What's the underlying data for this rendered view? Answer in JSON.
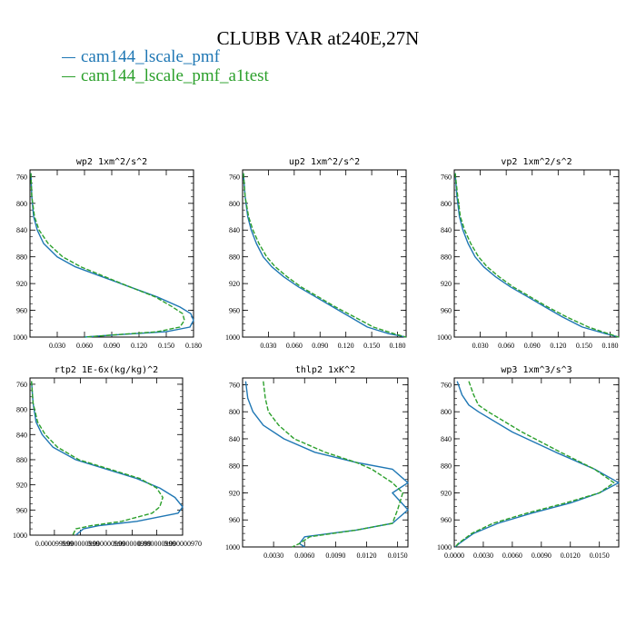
{
  "title": "CLUBB VAR at240E,27N",
  "legend": [
    {
      "label": "cam144_lscale_pmf",
      "color": "#1f77b4",
      "style": "solid"
    },
    {
      "label": "cam144_lscale_pmf_a1test",
      "color": "#2ca02c",
      "style": "dashed"
    }
  ],
  "chart_data": [
    {
      "type": "line",
      "title": "wp2   1xm^2/s^2",
      "xlim": [
        0,
        0.18
      ],
      "ylim": [
        1000,
        750
      ],
      "y_inverted": true,
      "xticks": [
        0.03,
        0.06,
        0.09,
        0.12,
        0.15,
        0.18
      ],
      "xticklabels": [
        "0.030",
        "0.060",
        "0.090",
        "0.120",
        "0.150",
        "0.180"
      ],
      "yticks": [
        760,
        800,
        840,
        880,
        920,
        960,
        1000
      ],
      "series": [
        {
          "name": "cam144_lscale_pmf",
          "color": "#1f77b4",
          "x": [
            0.001,
            0.002,
            0.004,
            0.008,
            0.015,
            0.03,
            0.05,
            0.08,
            0.11,
            0.14,
            0.165,
            0.177,
            0.18,
            0.176,
            0.15,
            0.09,
            0.06
          ],
          "y": [
            755,
            790,
            820,
            840,
            860,
            880,
            895,
            910,
            925,
            940,
            955,
            965,
            975,
            985,
            992,
            997,
            1000
          ]
        },
        {
          "name": "cam144_lscale_pmf_a1test",
          "color": "#2ca02c",
          "x": [
            0.001,
            0.002,
            0.005,
            0.01,
            0.02,
            0.036,
            0.056,
            0.083,
            0.11,
            0.138,
            0.157,
            0.168,
            0.17,
            0.165,
            0.14,
            0.09,
            0.06
          ],
          "y": [
            755,
            790,
            820,
            840,
            860,
            880,
            895,
            910,
            925,
            940,
            955,
            965,
            975,
            985,
            992,
            997,
            1000
          ]
        }
      ]
    },
    {
      "type": "line",
      "title": "up2   1xm^2/s^2",
      "xlim": [
        0,
        0.19
      ],
      "ylim": [
        1000,
        750
      ],
      "y_inverted": true,
      "xticks": [
        0.03,
        0.06,
        0.09,
        0.12,
        0.15,
        0.18
      ],
      "xticklabels": [
        "0.030",
        "0.060",
        "0.090",
        "0.120",
        "0.150",
        "0.180"
      ],
      "yticks": [
        760,
        800,
        840,
        880,
        920,
        960,
        1000
      ],
      "series": [
        {
          "name": "cam144_lscale_pmf",
          "color": "#1f77b4",
          "x": [
            0.001,
            0.003,
            0.006,
            0.01,
            0.016,
            0.024,
            0.034,
            0.048,
            0.065,
            0.085,
            0.105,
            0.125,
            0.145,
            0.17,
            0.19
          ],
          "y": [
            755,
            790,
            820,
            840,
            860,
            880,
            895,
            910,
            925,
            940,
            955,
            970,
            985,
            995,
            1000
          ]
        },
        {
          "name": "cam144_lscale_pmf_a1test",
          "color": "#2ca02c",
          "x": [
            0.001,
            0.003,
            0.007,
            0.012,
            0.019,
            0.028,
            0.038,
            0.052,
            0.068,
            0.088,
            0.108,
            0.13,
            0.152,
            0.176,
            0.19
          ],
          "y": [
            755,
            790,
            820,
            840,
            860,
            880,
            895,
            910,
            925,
            940,
            955,
            970,
            985,
            995,
            1000
          ]
        }
      ]
    },
    {
      "type": "line",
      "title": "vp2   1xm^2/s^2",
      "xlim": [
        0,
        0.19
      ],
      "ylim": [
        1000,
        750
      ],
      "y_inverted": true,
      "xticks": [
        0.03,
        0.06,
        0.09,
        0.12,
        0.15,
        0.18
      ],
      "xticklabels": [
        "0.030",
        "0.060",
        "0.090",
        "0.120",
        "0.150",
        "0.180"
      ],
      "yticks": [
        760,
        800,
        840,
        880,
        920,
        960,
        1000
      ],
      "series": [
        {
          "name": "cam144_lscale_pmf",
          "color": "#1f77b4",
          "x": [
            0.001,
            0.003,
            0.006,
            0.01,
            0.016,
            0.024,
            0.034,
            0.048,
            0.065,
            0.085,
            0.105,
            0.125,
            0.148,
            0.175,
            0.19
          ],
          "y": [
            755,
            790,
            820,
            840,
            860,
            880,
            895,
            910,
            925,
            940,
            955,
            970,
            985,
            995,
            1000
          ]
        },
        {
          "name": "cam144_lscale_pmf_a1test",
          "color": "#2ca02c",
          "x": [
            0.001,
            0.004,
            0.007,
            0.012,
            0.019,
            0.028,
            0.038,
            0.052,
            0.068,
            0.088,
            0.108,
            0.13,
            0.155,
            0.178,
            0.19
          ],
          "y": [
            755,
            790,
            820,
            840,
            860,
            880,
            895,
            910,
            925,
            940,
            955,
            970,
            985,
            995,
            1000
          ]
        }
      ]
    },
    {
      "type": "line",
      "title": "rtp2   1E-6x(kg/kg)^2",
      "xlim": [
        0,
        1.0
      ],
      "ylim": [
        1000,
        750
      ],
      "y_inverted": true,
      "xticks": [
        0.16,
        0.33,
        0.5,
        0.67,
        0.83,
        1.0
      ],
      "xticklabels": [
        "0.000099999",
        "0.000000999",
        "0.000000999",
        "0.000000999",
        "0.000000999",
        "0.000000970"
      ],
      "yticks": [
        760,
        800,
        840,
        880,
        920,
        960,
        1000
      ],
      "series": [
        {
          "name": "cam144_lscale_pmf",
          "color": "#1f77b4",
          "x": [
            0.01,
            0.02,
            0.04,
            0.08,
            0.15,
            0.3,
            0.5,
            0.7,
            0.85,
            0.95,
            1.0,
            0.97,
            0.7,
            0.45,
            0.35,
            0.3
          ],
          "y": [
            755,
            790,
            820,
            840,
            860,
            880,
            895,
            910,
            925,
            940,
            955,
            965,
            978,
            985,
            990,
            1000
          ]
        },
        {
          "name": "cam144_lscale_pmf_a1test",
          "color": "#2ca02c",
          "x": [
            0.01,
            0.02,
            0.05,
            0.1,
            0.18,
            0.32,
            0.52,
            0.72,
            0.83,
            0.87,
            0.85,
            0.8,
            0.6,
            0.4,
            0.3,
            0.28
          ],
          "y": [
            755,
            790,
            820,
            840,
            860,
            880,
            895,
            910,
            925,
            940,
            955,
            965,
            978,
            985,
            990,
            1000
          ]
        }
      ]
    },
    {
      "type": "line",
      "title": "thlp2   1xK^2",
      "xlim": [
        0,
        0.016
      ],
      "ylim": [
        1000,
        750
      ],
      "y_inverted": true,
      "xticks": [
        0.003,
        0.006,
        0.009,
        0.012,
        0.015
      ],
      "xticklabels": [
        "0.0030",
        "0.0060",
        "0.0090",
        "0.0120",
        "0.0150"
      ],
      "yticks": [
        760,
        800,
        840,
        880,
        920,
        960,
        1000
      ],
      "series": [
        {
          "name": "cam144_lscale_pmf",
          "color": "#1f77b4",
          "x": [
            0.0003,
            0.0005,
            0.001,
            0.002,
            0.004,
            0.007,
            0.011,
            0.0145,
            0.016,
            0.0145,
            0.016,
            0.0145,
            0.011,
            0.006,
            0.0055,
            0.006
          ],
          "y": [
            755,
            780,
            800,
            820,
            840,
            860,
            875,
            885,
            905,
            920,
            945,
            965,
            975,
            985,
            995,
            1000
          ]
        },
        {
          "name": "cam144_lscale_pmf_a1test",
          "color": "#2ca02c",
          "x": [
            0.002,
            0.0022,
            0.0025,
            0.0035,
            0.005,
            0.008,
            0.011,
            0.0125,
            0.0145,
            0.0155,
            0.015,
            0.0145,
            0.011,
            0.0065,
            0.0055,
            0.0048
          ],
          "y": [
            755,
            780,
            800,
            820,
            840,
            860,
            875,
            885,
            905,
            920,
            945,
            965,
            975,
            985,
            995,
            1000
          ]
        }
      ]
    },
    {
      "type": "line",
      "title": "wp3   1xm^3/s^3",
      "xlim": [
        0,
        0.017
      ],
      "ylim": [
        1000,
        750
      ],
      "y_inverted": true,
      "xticks": [
        0.0,
        0.003,
        0.006,
        0.009,
        0.012,
        0.015
      ],
      "xticklabels": [
        "0.0000",
        "0.0030",
        "0.0060",
        "0.0090",
        "0.0120",
        "0.0150"
      ],
      "yticks": [
        760,
        800,
        840,
        880,
        920,
        960,
        1000
      ],
      "series": [
        {
          "name": "cam144_lscale_pmf",
          "color": "#1f77b4",
          "x": [
            0.0003,
            0.0008,
            0.0015,
            0.0025,
            0.006,
            0.0105,
            0.0145,
            0.017,
            0.015,
            0.012,
            0.008,
            0.0045,
            0.002,
            0.0005,
            0.0001
          ],
          "y": [
            755,
            775,
            790,
            800,
            830,
            860,
            885,
            905,
            920,
            935,
            950,
            965,
            980,
            995,
            1000
          ]
        },
        {
          "name": "cam144_lscale_pmf_a1test",
          "color": "#2ca02c",
          "x": [
            0.0015,
            0.002,
            0.0025,
            0.0035,
            0.007,
            0.011,
            0.0145,
            0.0165,
            0.015,
            0.0115,
            0.0075,
            0.004,
            0.0018,
            0.0004,
            0.0001
          ],
          "y": [
            755,
            775,
            790,
            800,
            830,
            860,
            885,
            905,
            920,
            935,
            950,
            965,
            980,
            995,
            1000
          ]
        }
      ]
    }
  ]
}
